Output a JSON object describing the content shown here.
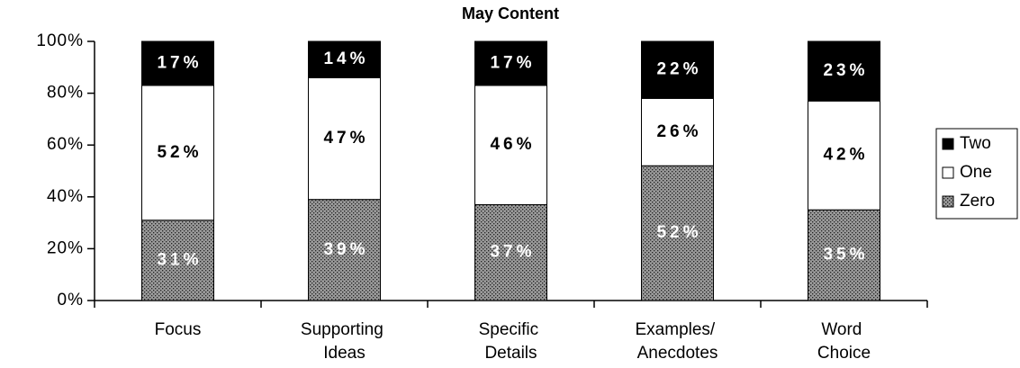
{
  "chart_data": {
    "type": "stacked_bar",
    "title": "May Content",
    "categories": [
      "Focus",
      "Supporting Ideas",
      "Specific Details",
      "Examples/ Anecdotes",
      "Word Choice"
    ],
    "series": [
      {
        "name": "Zero",
        "color": "#9a9a9a",
        "values": [
          31,
          39,
          37,
          52,
          35
        ],
        "value_labels": [
          "31%",
          "39%",
          "37%",
          "52%",
          "35%"
        ]
      },
      {
        "name": "One",
        "color": "#ffffff",
        "values": [
          52,
          47,
          46,
          26,
          42
        ],
        "value_labels": [
          "52%",
          "47%",
          "46%",
          "26%",
          "42%"
        ]
      },
      {
        "name": "Two",
        "color": "#000000",
        "values": [
          17,
          14,
          17,
          22,
          23
        ],
        "value_labels": [
          "17%",
          "14%",
          "17%",
          "22%",
          "23%"
        ]
      }
    ],
    "ylim": [
      0,
      100
    ],
    "yticks": [
      {
        "value": 0,
        "label": "0%"
      },
      {
        "value": 20,
        "label": "20%"
      },
      {
        "value": 40,
        "label": "40%"
      },
      {
        "value": 60,
        "label": "60%"
      },
      {
        "value": 80,
        "label": "80%"
      },
      {
        "value": 100,
        "label": "100%"
      }
    ],
    "legend": "right"
  }
}
